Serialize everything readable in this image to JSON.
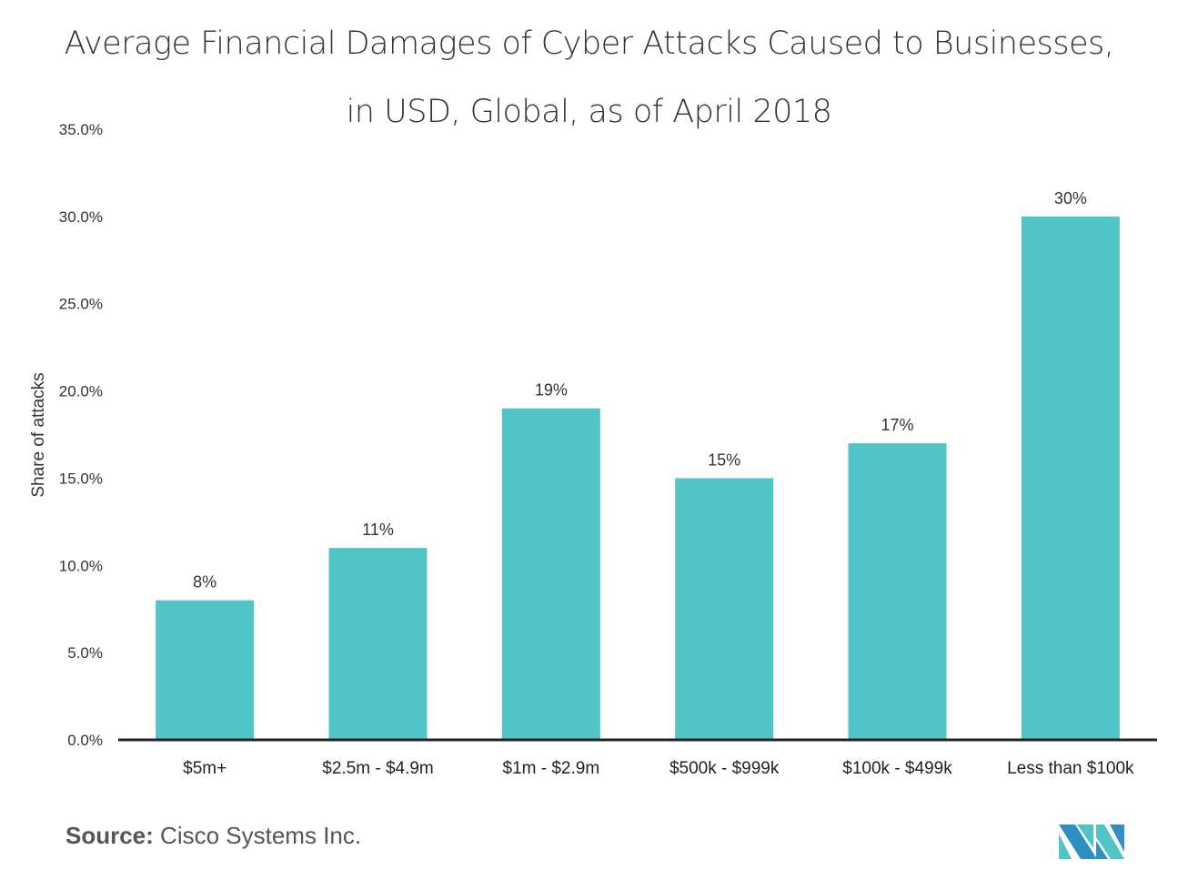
{
  "chart_data": {
    "type": "bar",
    "title": "Average Financial Damages of Cyber Attacks Caused to Businesses,",
    "title_line2": "in USD, Global, as of April 2018",
    "categories": [
      "$5m+",
      "$2.5m - $4.9m",
      "$1m - $2.9m",
      "$500k - $999k",
      "$100k - $499k",
      "Less than $100k"
    ],
    "values": [
      8,
      11,
      19,
      15,
      17,
      30
    ],
    "data_labels": [
      "8%",
      "11%",
      "19%",
      "15%",
      "17%",
      "30%"
    ],
    "xlabel": "",
    "ylabel": "Share of attacks",
    "ylim": [
      0,
      35
    ],
    "yticks": [
      0,
      5,
      10,
      15,
      20,
      25,
      30,
      35
    ],
    "ytick_labels": [
      "0.0%",
      "5.0%",
      "10.0%",
      "15.0%",
      "20.0%",
      "25.0%",
      "30.0%",
      "35.0%"
    ],
    "grid": false,
    "bar_color": "#50C4C6"
  },
  "source": {
    "label": "Source:",
    "text": "Cisco Systems Inc."
  },
  "logo_text": "MI"
}
